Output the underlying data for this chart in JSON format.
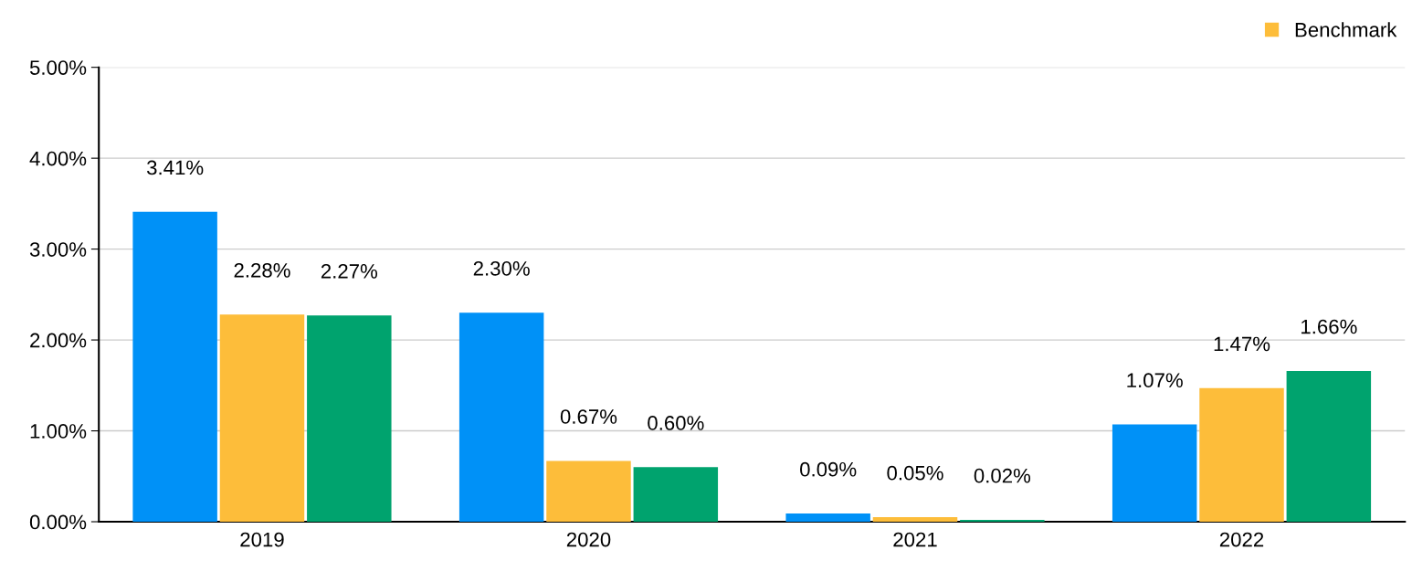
{
  "chart_data": {
    "type": "bar",
    "categories": [
      "2019",
      "2020",
      "2021",
      "2022"
    ],
    "series": [
      {
        "color": "#0091f7",
        "values": [
          3.41,
          2.3,
          0.09,
          1.07
        ],
        "value_labels": [
          "3.41%",
          "2.30%",
          "0.09%",
          "1.07%"
        ]
      },
      {
        "name": "Benchmark",
        "color": "#fdbd3a",
        "values": [
          2.28,
          0.67,
          0.05,
          1.47
        ],
        "value_labels": [
          "2.28%",
          "0.67%",
          "0.05%",
          "1.47%"
        ]
      },
      {
        "color": "#00a36e",
        "values": [
          2.27,
          0.6,
          0.02,
          1.66
        ],
        "value_labels": [
          "2.27%",
          "0.60%",
          "0.02%",
          "1.66%"
        ]
      }
    ],
    "ylim": [
      0,
      5
    ],
    "yticks": [
      {
        "value": 0,
        "label": "0.00%"
      },
      {
        "value": 1,
        "label": "1.00%"
      },
      {
        "value": 2,
        "label": "2.00%"
      },
      {
        "value": 3,
        "label": "3.00%"
      },
      {
        "value": 4,
        "label": "4.00%"
      },
      {
        "value": 5,
        "label": "5.00%"
      }
    ],
    "grid": "y",
    "legend": "top right"
  }
}
